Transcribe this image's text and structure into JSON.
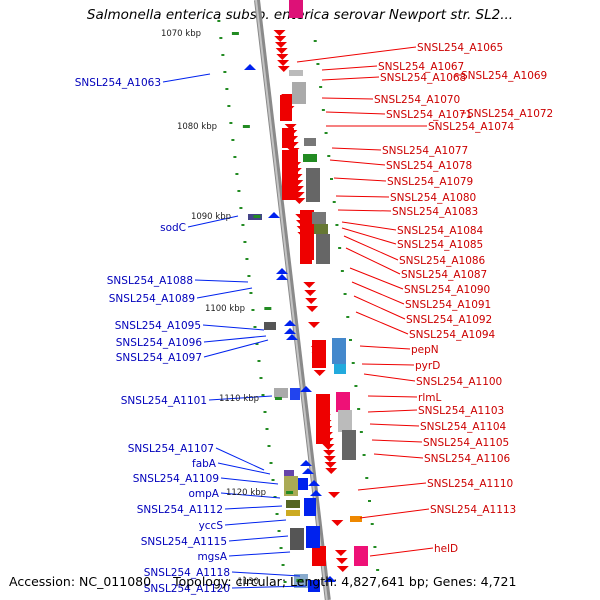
{
  "title": "Salmonella enterica subsp. enterica serovar Newport str. SL2...",
  "footer": {
    "accession": "Accession: NC_011080",
    "summary": "Topology: circular; Length: 4,827,641 bp; Genes: 4,721"
  },
  "colors": {
    "right_label": "#cc0000",
    "left_label": "#0000bb",
    "tick": "#228b22",
    "backbone": "#999999"
  },
  "position_ticks": [
    "1070 kbp",
    "1080 kbp",
    "1090 kbp",
    "1100 kbp",
    "1110 kbp",
    "1120 kbp",
    "1130"
  ],
  "right_labels": [
    "SNSL254_A1065",
    "SNSL254_A1067",
    "SNSL254_A1068",
    "SNSL254_A1069",
    "SNSL254_A1070",
    "SNSL254_A1071",
    "SNSL254_A1072",
    "SNSL254_A1074",
    "SNSL254_A1077",
    "SNSL254_A1078",
    "SNSL254_A1079",
    "SNSL254_A1080",
    "SNSL254_A1083",
    "SNSL254_A1084",
    "SNSL254_A1085",
    "SNSL254_A1086",
    "SNSL254_A1087",
    "SNSL254_A1090",
    "SNSL254_A1091",
    "SNSL254_A1092",
    "SNSL254_A1094",
    "pepN",
    "pyrD",
    "SNSL254_A1100",
    "rlmL",
    "SNSL254_A1103",
    "SNSL254_A1104",
    "SNSL254_A1105",
    "SNSL254_A1106",
    "SNSL254_A1110",
    "SNSL254_A1113",
    "helD"
  ],
  "left_labels": [
    "SNSL254_A1063",
    "sodC",
    "SNSL254_A1088",
    "SNSL254_A1089",
    "SNSL254_A1095",
    "SNSL254_A1096",
    "SNSL254_A1097",
    "SNSL254_A1101",
    "SNSL254_A1107",
    "fabA",
    "SNSL254_A1109",
    "ompA",
    "SNSL254_A1112",
    "yccS",
    "SNSL254_A1115",
    "mgsA",
    "SNSL254_A1118",
    "SNSL254_A1120"
  ]
}
